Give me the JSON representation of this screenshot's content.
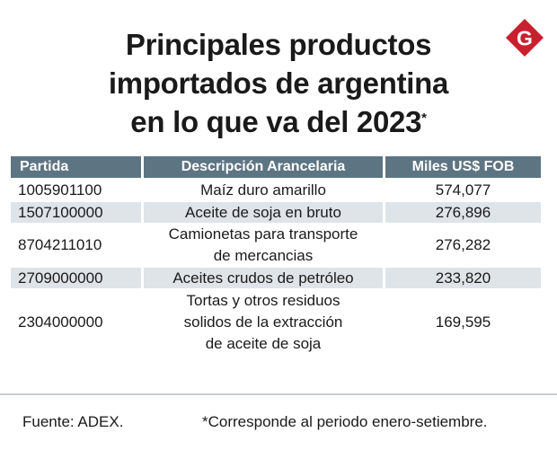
{
  "title_lines": [
    "Principales productos",
    "importados de argentina",
    "en lo que va del 2023"
  ],
  "title_mark": "*",
  "brand": {
    "logo_letter": "G",
    "color": "#c8202f"
  },
  "colors": {
    "header_bg": "#5d7483",
    "row_shade": "#dfe4e8"
  },
  "chart_data": {
    "type": "table",
    "columns": [
      "Partida",
      "Descripción Arancelaria",
      "Miles US$ FOB"
    ],
    "rows": [
      {
        "partida": "1005901100",
        "descripcion": [
          "Maíz duro amarillo"
        ],
        "valor": "574,077",
        "value_num": 574077
      },
      {
        "partida": "1507100000",
        "descripcion": [
          "Aceite de soja en bruto"
        ],
        "valor": "276,896",
        "value_num": 276896
      },
      {
        "partida": "8704211010",
        "descripcion": [
          "Camionetas para transporte",
          "de mercancias"
        ],
        "valor": "276,282",
        "value_num": 276282
      },
      {
        "partida": "2709000000",
        "descripcion": [
          "Aceites crudos de petróleo"
        ],
        "valor": "233,820",
        "value_num": 233820
      },
      {
        "partida": "2304000000",
        "descripcion": [
          "Tortas y otros residuos",
          "solidos de la extracción",
          "de aceite de soja"
        ],
        "valor": "169,595",
        "value_num": 169595
      }
    ]
  },
  "footer": {
    "source": "Fuente: ADEX.",
    "note": "*Corresponde al periodo enero-setiembre."
  }
}
